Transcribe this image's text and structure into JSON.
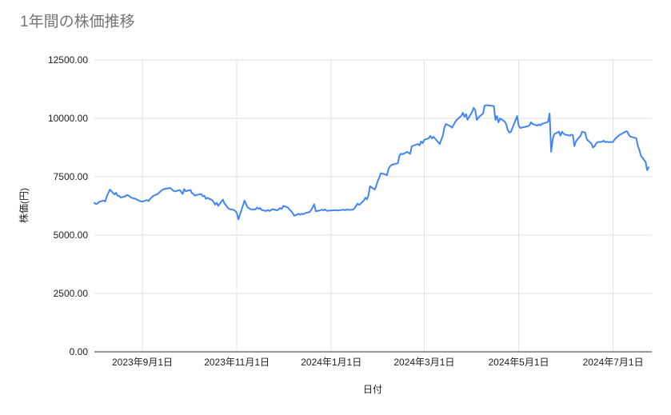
{
  "title": "1年間の株価推移",
  "chart_data": {
    "type": "line",
    "title": "1年間の株価推移",
    "xlabel": "日付",
    "ylabel": "株価(円)",
    "grid": true,
    "legend": "none",
    "y_min": 0,
    "y_max": 12500,
    "y_ticks": [
      {
        "value": 0,
        "label": "0.00"
      },
      {
        "value": 2500,
        "label": "2500.00"
      },
      {
        "value": 5000,
        "label": "5000.00"
      },
      {
        "value": 7500,
        "label": "7500.00"
      },
      {
        "value": 10000,
        "label": "10000.00"
      },
      {
        "value": 12500,
        "label": "12500.00"
      }
    ],
    "x_domain": [
      "2023-08-01",
      "2024-07-26"
    ],
    "x_ticks": [
      {
        "date": "2023-09-01",
        "label": "2023年9月1日"
      },
      {
        "date": "2023-11-01",
        "label": "2023年11月1日"
      },
      {
        "date": "2024-01-01",
        "label": "2024年1月1日"
      },
      {
        "date": "2024-03-01",
        "label": "2024年3月1日"
      },
      {
        "date": "2024-05-01",
        "label": "2024年5月1日"
      },
      {
        "date": "2024-07-01",
        "label": "2024年7月1日"
      }
    ],
    "colors": {
      "line": "#4285f4",
      "grid": "#e0e0e0",
      "axis": "#333333",
      "tick_text": "#202124",
      "title_text": "#757575"
    },
    "points": [
      [
        "2023-08-01",
        6380
      ],
      [
        "2023-08-02",
        6330
      ],
      [
        "2023-08-03",
        6350
      ],
      [
        "2023-08-04",
        6420
      ],
      [
        "2023-08-07",
        6480
      ],
      [
        "2023-08-08",
        6440
      ],
      [
        "2023-08-09",
        6650
      ],
      [
        "2023-08-10",
        6800
      ],
      [
        "2023-08-11",
        6950
      ],
      [
        "2023-08-14",
        6740
      ],
      [
        "2023-08-15",
        6810
      ],
      [
        "2023-08-16",
        6690
      ],
      [
        "2023-08-17",
        6680
      ],
      [
        "2023-08-18",
        6610
      ],
      [
        "2023-08-21",
        6660
      ],
      [
        "2023-08-22",
        6720
      ],
      [
        "2023-08-23",
        6700
      ],
      [
        "2023-08-24",
        6640
      ],
      [
        "2023-08-25",
        6600
      ],
      [
        "2023-08-28",
        6540
      ],
      [
        "2023-08-29",
        6500
      ],
      [
        "2023-08-30",
        6470
      ],
      [
        "2023-08-31",
        6450
      ],
      [
        "2023-09-01",
        6430
      ],
      [
        "2023-09-04",
        6500
      ],
      [
        "2023-09-05",
        6460
      ],
      [
        "2023-09-06",
        6550
      ],
      [
        "2023-09-07",
        6610
      ],
      [
        "2023-09-08",
        6680
      ],
      [
        "2023-09-11",
        6760
      ],
      [
        "2023-09-12",
        6830
      ],
      [
        "2023-09-13",
        6890
      ],
      [
        "2023-09-14",
        6940
      ],
      [
        "2023-09-15",
        6970
      ],
      [
        "2023-09-19",
        7020
      ],
      [
        "2023-09-20",
        6960
      ],
      [
        "2023-09-21",
        6900
      ],
      [
        "2023-09-22",
        6870
      ],
      [
        "2023-09-25",
        6930
      ],
      [
        "2023-09-26",
        6860
      ],
      [
        "2023-09-27",
        6760
      ],
      [
        "2023-09-28",
        6970
      ],
      [
        "2023-09-29",
        6880
      ],
      [
        "2023-10-02",
        6930
      ],
      [
        "2023-10-03",
        6800
      ],
      [
        "2023-10-04",
        6760
      ],
      [
        "2023-10-05",
        6690
      ],
      [
        "2023-10-06",
        6720
      ],
      [
        "2023-10-09",
        6760
      ],
      [
        "2023-10-10",
        6660
      ],
      [
        "2023-10-11",
        6690
      ],
      [
        "2023-10-12",
        6550
      ],
      [
        "2023-10-13",
        6600
      ],
      [
        "2023-10-16",
        6500
      ],
      [
        "2023-10-17",
        6420
      ],
      [
        "2023-10-18",
        6300
      ],
      [
        "2023-10-19",
        6380
      ],
      [
        "2023-10-20",
        6250
      ],
      [
        "2023-10-23",
        6520
      ],
      [
        "2023-10-24",
        6360
      ],
      [
        "2023-10-25",
        6280
      ],
      [
        "2023-10-26",
        6180
      ],
      [
        "2023-10-27",
        6120
      ],
      [
        "2023-10-30",
        6080
      ],
      [
        "2023-10-31",
        6030
      ],
      [
        "2023-11-01",
        5950
      ],
      [
        "2023-11-02",
        5670
      ],
      [
        "2023-11-06",
        6480
      ],
      [
        "2023-11-07",
        6320
      ],
      [
        "2023-11-08",
        6180
      ],
      [
        "2023-11-09",
        6150
      ],
      [
        "2023-11-10",
        6100
      ],
      [
        "2023-11-13",
        6100
      ],
      [
        "2023-11-14",
        6180
      ],
      [
        "2023-11-15",
        6120
      ],
      [
        "2023-11-16",
        6160
      ],
      [
        "2023-11-17",
        6080
      ],
      [
        "2023-11-20",
        6030
      ],
      [
        "2023-11-21",
        6080
      ],
      [
        "2023-11-22",
        6030
      ],
      [
        "2023-11-24",
        6110
      ],
      [
        "2023-11-27",
        6060
      ],
      [
        "2023-11-28",
        6100
      ],
      [
        "2023-11-29",
        6160
      ],
      [
        "2023-11-30",
        6120
      ],
      [
        "2023-12-01",
        6250
      ],
      [
        "2023-12-04",
        6180
      ],
      [
        "2023-12-05",
        6100
      ],
      [
        "2023-12-06",
        6030
      ],
      [
        "2023-12-07",
        5950
      ],
      [
        "2023-12-08",
        5830
      ],
      [
        "2023-12-11",
        5910
      ],
      [
        "2023-12-12",
        5870
      ],
      [
        "2023-12-13",
        5920
      ],
      [
        "2023-12-14",
        5890
      ],
      [
        "2023-12-15",
        5940
      ],
      [
        "2023-12-18",
        5990
      ],
      [
        "2023-12-19",
        6070
      ],
      [
        "2023-12-21",
        6320
      ],
      [
        "2023-12-22",
        6020
      ],
      [
        "2023-12-25",
        6060
      ],
      [
        "2023-12-26",
        6090
      ],
      [
        "2023-12-27",
        6060
      ],
      [
        "2023-12-28",
        6100
      ],
      [
        "2023-12-29",
        6040
      ],
      [
        "2024-01-04",
        6070
      ],
      [
        "2024-01-05",
        6050
      ],
      [
        "2024-01-09",
        6090
      ],
      [
        "2024-01-10",
        6060
      ],
      [
        "2024-01-11",
        6100
      ],
      [
        "2024-01-12",
        6080
      ],
      [
        "2024-01-15",
        6090
      ],
      [
        "2024-01-16",
        6150
      ],
      [
        "2024-01-17",
        6250
      ],
      [
        "2024-01-18",
        6350
      ],
      [
        "2024-01-19",
        6290
      ],
      [
        "2024-01-22",
        6480
      ],
      [
        "2024-01-23",
        6600
      ],
      [
        "2024-01-24",
        6530
      ],
      [
        "2024-01-25",
        6700
      ],
      [
        "2024-01-26",
        7090
      ],
      [
        "2024-01-29",
        6950
      ],
      [
        "2024-01-30",
        7100
      ],
      [
        "2024-01-31",
        7320
      ],
      [
        "2024-02-01",
        7460
      ],
      [
        "2024-02-02",
        7650
      ],
      [
        "2024-02-05",
        7600
      ],
      [
        "2024-02-06",
        7560
      ],
      [
        "2024-02-07",
        7850
      ],
      [
        "2024-02-08",
        7950
      ],
      [
        "2024-02-09",
        8010
      ],
      [
        "2024-02-13",
        8080
      ],
      [
        "2024-02-14",
        8390
      ],
      [
        "2024-02-15",
        8490
      ],
      [
        "2024-02-16",
        8460
      ],
      [
        "2024-02-19",
        8560
      ],
      [
        "2024-02-20",
        8520
      ],
      [
        "2024-02-21",
        8480
      ],
      [
        "2024-02-22",
        8800
      ],
      [
        "2024-02-26",
        8900
      ],
      [
        "2024-02-27",
        8840
      ],
      [
        "2024-02-28",
        9010
      ],
      [
        "2024-02-29",
        8940
      ],
      [
        "2024-03-01",
        9080
      ],
      [
        "2024-03-04",
        9150
      ],
      [
        "2024-03-05",
        9250
      ],
      [
        "2024-03-06",
        9140
      ],
      [
        "2024-03-07",
        9210
      ],
      [
        "2024-03-08",
        9140
      ],
      [
        "2024-03-11",
        8900
      ],
      [
        "2024-03-12",
        9080
      ],
      [
        "2024-03-13",
        9250
      ],
      [
        "2024-03-14",
        9590
      ],
      [
        "2024-03-15",
        9760
      ],
      [
        "2024-03-18",
        9660
      ],
      [
        "2024-03-19",
        9600
      ],
      [
        "2024-03-21",
        9840
      ],
      [
        "2024-03-22",
        9930
      ],
      [
        "2024-03-25",
        10110
      ],
      [
        "2024-03-26",
        10240
      ],
      [
        "2024-03-27",
        10060
      ],
      [
        "2024-03-28",
        10180
      ],
      [
        "2024-03-29",
        9940
      ],
      [
        "2024-04-01",
        10280
      ],
      [
        "2024-04-02",
        10450
      ],
      [
        "2024-04-03",
        10340
      ],
      [
        "2024-04-04",
        9930
      ],
      [
        "2024-04-05",
        10030
      ],
      [
        "2024-04-08",
        10210
      ],
      [
        "2024-04-09",
        10540
      ],
      [
        "2024-04-10",
        10560
      ],
      [
        "2024-04-11",
        10560
      ],
      [
        "2024-04-12",
        10550
      ],
      [
        "2024-04-15",
        10520
      ],
      [
        "2024-04-16",
        9930
      ],
      [
        "2024-04-17",
        10100
      ],
      [
        "2024-04-18",
        9830
      ],
      [
        "2024-04-19",
        10000
      ],
      [
        "2024-04-22",
        9860
      ],
      [
        "2024-04-23",
        9750
      ],
      [
        "2024-04-24",
        9500
      ],
      [
        "2024-04-25",
        9390
      ],
      [
        "2024-04-26",
        9420
      ],
      [
        "2024-04-30",
        10100
      ],
      [
        "2024-05-01",
        9690
      ],
      [
        "2024-05-02",
        9590
      ],
      [
        "2024-05-07",
        9660
      ],
      [
        "2024-05-08",
        9700
      ],
      [
        "2024-05-09",
        9830
      ],
      [
        "2024-05-10",
        9760
      ],
      [
        "2024-05-13",
        9690
      ],
      [
        "2024-05-14",
        9740
      ],
      [
        "2024-05-15",
        9700
      ],
      [
        "2024-05-16",
        9760
      ],
      [
        "2024-05-17",
        9780
      ],
      [
        "2024-05-20",
        9850
      ],
      [
        "2024-05-21",
        10210
      ],
      [
        "2024-05-22",
        8570
      ],
      [
        "2024-05-23",
        9110
      ],
      [
        "2024-05-24",
        9320
      ],
      [
        "2024-05-27",
        9430
      ],
      [
        "2024-05-28",
        9260
      ],
      [
        "2024-05-29",
        9430
      ],
      [
        "2024-05-30",
        9350
      ],
      [
        "2024-05-31",
        9300
      ],
      [
        "2024-06-03",
        9260
      ],
      [
        "2024-06-04",
        9300
      ],
      [
        "2024-06-05",
        9280
      ],
      [
        "2024-06-06",
        8810
      ],
      [
        "2024-06-07",
        9010
      ],
      [
        "2024-06-10",
        9260
      ],
      [
        "2024-06-11",
        9430
      ],
      [
        "2024-06-12",
        9400
      ],
      [
        "2024-06-13",
        9390
      ],
      [
        "2024-06-14",
        9100
      ],
      [
        "2024-06-17",
        8920
      ],
      [
        "2024-06-18",
        8750
      ],
      [
        "2024-06-19",
        8800
      ],
      [
        "2024-06-20",
        8920
      ],
      [
        "2024-06-21",
        8980
      ],
      [
        "2024-06-24",
        9000
      ],
      [
        "2024-06-25",
        9040
      ],
      [
        "2024-06-26",
        8980
      ],
      [
        "2024-06-27",
        9000
      ],
      [
        "2024-06-28",
        8980
      ],
      [
        "2024-07-01",
        8990
      ],
      [
        "2024-07-02",
        9090
      ],
      [
        "2024-07-03",
        9160
      ],
      [
        "2024-07-04",
        9220
      ],
      [
        "2024-07-05",
        9280
      ],
      [
        "2024-07-08",
        9390
      ],
      [
        "2024-07-09",
        9430
      ],
      [
        "2024-07-10",
        9450
      ],
      [
        "2024-07-11",
        9320
      ],
      [
        "2024-07-12",
        9220
      ],
      [
        "2024-07-16",
        9150
      ],
      [
        "2024-07-17",
        8810
      ],
      [
        "2024-07-18",
        8640
      ],
      [
        "2024-07-19",
        8400
      ],
      [
        "2024-07-22",
        8130
      ],
      [
        "2024-07-23",
        7780
      ],
      [
        "2024-07-24",
        7900
      ]
    ]
  }
}
